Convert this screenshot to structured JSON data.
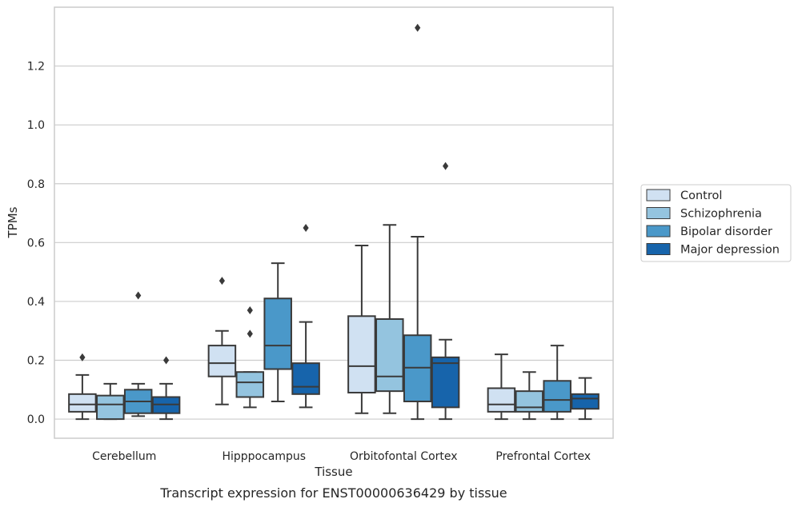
{
  "chart_data": {
    "type": "box",
    "title": "Transcript expression for ENST00000636429 by tissue",
    "xlabel": "Tissue",
    "ylabel": "TPMs",
    "ylim": [
      -0.065,
      1.4
    ],
    "yticks": [
      0.0,
      0.2,
      0.4,
      0.6,
      0.8,
      1.0,
      1.2
    ],
    "ytick_labels": [
      "0.0",
      "0.2",
      "0.4",
      "0.6",
      "0.8",
      "1.0",
      "1.2"
    ],
    "grid": "horizontal",
    "legend_position": "right-outside",
    "categories": [
      "Cerebellum",
      "Hipppocampus",
      "Orbitofontal Cortex",
      "Prefrontal Cortex"
    ],
    "series": [
      {
        "name": "Control",
        "color": "#d0e1f2",
        "boxes": [
          {
            "whislo": 0.0,
            "q1": 0.025,
            "med": 0.05,
            "q3": 0.085,
            "whishi": 0.15,
            "fliers": [
              0.21
            ]
          },
          {
            "whislo": 0.05,
            "q1": 0.145,
            "med": 0.19,
            "q3": 0.25,
            "whishi": 0.3,
            "fliers": [
              0.47
            ]
          },
          {
            "whislo": 0.02,
            "q1": 0.09,
            "med": 0.18,
            "q3": 0.35,
            "whishi": 0.59,
            "fliers": []
          },
          {
            "whislo": 0.0,
            "q1": 0.025,
            "med": 0.05,
            "q3": 0.105,
            "whishi": 0.22,
            "fliers": []
          }
        ]
      },
      {
        "name": "Schizophrenia",
        "color": "#94c4df",
        "boxes": [
          {
            "whislo": 0.0,
            "q1": 0.0,
            "med": 0.05,
            "q3": 0.08,
            "whishi": 0.12,
            "fliers": []
          },
          {
            "whislo": 0.04,
            "q1": 0.075,
            "med": 0.125,
            "q3": 0.16,
            "whishi": 0.16,
            "fliers": [
              0.29,
              0.37
            ]
          },
          {
            "whislo": 0.02,
            "q1": 0.095,
            "med": 0.145,
            "q3": 0.34,
            "whishi": 0.66,
            "fliers": []
          },
          {
            "whislo": 0.0,
            "q1": 0.025,
            "med": 0.04,
            "q3": 0.095,
            "whishi": 0.16,
            "fliers": []
          }
        ]
      },
      {
        "name": "Bipolar disorder",
        "color": "#4a98c9",
        "boxes": [
          {
            "whislo": 0.01,
            "q1": 0.02,
            "med": 0.06,
            "q3": 0.1,
            "whishi": 0.12,
            "fliers": [
              0.42
            ]
          },
          {
            "whislo": 0.06,
            "q1": 0.17,
            "med": 0.25,
            "q3": 0.41,
            "whishi": 0.53,
            "fliers": []
          },
          {
            "whislo": 0.0,
            "q1": 0.06,
            "med": 0.175,
            "q3": 0.285,
            "whishi": 0.62,
            "fliers": [
              1.33
            ]
          },
          {
            "whislo": 0.0,
            "q1": 0.025,
            "med": 0.065,
            "q3": 0.13,
            "whishi": 0.25,
            "fliers": []
          }
        ]
      },
      {
        "name": "Major depression",
        "color": "#1764ab",
        "boxes": [
          {
            "whislo": 0.0,
            "q1": 0.02,
            "med": 0.05,
            "q3": 0.075,
            "whishi": 0.12,
            "fliers": [
              0.2
            ]
          },
          {
            "whislo": 0.04,
            "q1": 0.085,
            "med": 0.11,
            "q3": 0.19,
            "whishi": 0.33,
            "fliers": [
              0.65
            ]
          },
          {
            "whislo": 0.0,
            "q1": 0.04,
            "med": 0.19,
            "q3": 0.21,
            "whishi": 0.27,
            "fliers": [
              0.86
            ]
          },
          {
            "whislo": 0.0,
            "q1": 0.035,
            "med": 0.07,
            "q3": 0.085,
            "whishi": 0.14,
            "fliers": []
          }
        ]
      }
    ]
  }
}
